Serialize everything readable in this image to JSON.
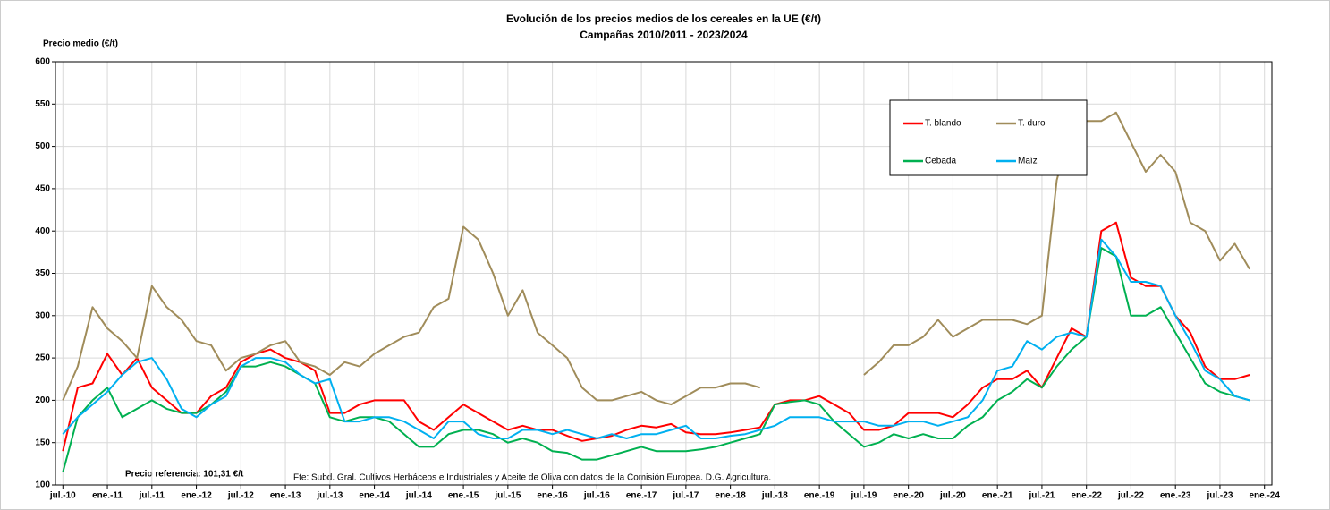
{
  "chart_data": {
    "type": "line",
    "title": "Evolución de los precios medios de los cereales en la UE (€/t)",
    "subtitle": "Campañas 2010/2011 - 2023/2024",
    "y_label": "Precio medio (€/t)",
    "annotations": [
      "Precio referencia: 101,31 €/t",
      "Fte: Subd. Gral. Cultivos Herbáceos e Industriales  y Aceite de Oliva con datos de la Comisión Europea. D.G. Agricultura."
    ],
    "x": [
      "2010-07",
      "2010-09",
      "2010-11",
      "2011-01",
      "2011-03",
      "2011-05",
      "2011-07",
      "2011-09",
      "2011-11",
      "2012-01",
      "2012-03",
      "2012-05",
      "2012-07",
      "2012-09",
      "2012-11",
      "2013-01",
      "2013-03",
      "2013-05",
      "2013-07",
      "2013-09",
      "2013-11",
      "2014-01",
      "2014-03",
      "2014-05",
      "2014-07",
      "2014-09",
      "2014-11",
      "2015-01",
      "2015-03",
      "2015-05",
      "2015-07",
      "2015-09",
      "2015-11",
      "2016-01",
      "2016-03",
      "2016-05",
      "2016-07",
      "2016-09",
      "2016-11",
      "2017-01",
      "2017-03",
      "2017-05",
      "2017-07",
      "2017-09",
      "2017-11",
      "2018-01",
      "2018-03",
      "2018-05",
      "2018-07",
      "2018-09",
      "2018-11",
      "2019-01",
      "2019-03",
      "2019-05",
      "2019-07",
      "2019-09",
      "2019-11",
      "2020-01",
      "2020-03",
      "2020-05",
      "2020-07",
      "2020-09",
      "2020-11",
      "2021-01",
      "2021-03",
      "2021-05",
      "2021-07",
      "2021-09",
      "2021-11",
      "2022-01",
      "2022-03",
      "2022-05",
      "2022-07",
      "2022-09",
      "2022-11",
      "2023-01",
      "2023-03",
      "2023-05",
      "2023-07",
      "2023-09",
      "2023-11"
    ],
    "series": [
      {
        "name": "T. blando",
        "color": "#ff0000",
        "values": [
          140,
          215,
          220,
          255,
          230,
          250,
          215,
          200,
          185,
          185,
          205,
          215,
          245,
          255,
          260,
          250,
          245,
          235,
          185,
          185,
          195,
          200,
          200,
          200,
          175,
          165,
          180,
          195,
          185,
          175,
          165,
          170,
          165,
          165,
          158,
          152,
          155,
          158,
          165,
          170,
          168,
          172,
          162,
          160,
          160,
          162,
          165,
          168,
          195,
          200,
          200,
          205,
          195,
          185,
          165,
          165,
          170,
          185,
          185,
          185,
          180,
          195,
          215,
          225,
          225,
          235,
          215,
          250,
          285,
          275,
          400,
          410,
          345,
          335,
          335,
          300,
          280,
          240,
          225,
          225,
          230
        ]
      },
      {
        "name": "T. duro",
        "color": "#a08c5a",
        "values": [
          200,
          240,
          310,
          285,
          270,
          250,
          335,
          310,
          295,
          270,
          265,
          235,
          250,
          255,
          265,
          270,
          245,
          240,
          230,
          245,
          240,
          255,
          265,
          275,
          280,
          310,
          320,
          405,
          390,
          350,
          300,
          330,
          280,
          265,
          250,
          215,
          200,
          200,
          205,
          210,
          200,
          195,
          205,
          215,
          215,
          220,
          220,
          215,
          null,
          null,
          null,
          null,
          null,
          null,
          230,
          245,
          265,
          265,
          275,
          295,
          275,
          285,
          295,
          295,
          295,
          290,
          300,
          460,
          525,
          530,
          530,
          540,
          505,
          470,
          490,
          470,
          410,
          400,
          365,
          385,
          355
        ]
      },
      {
        "name": "Cebada",
        "color": "#00b050",
        "values": [
          115,
          180,
          200,
          215,
          180,
          190,
          200,
          190,
          185,
          185,
          195,
          210,
          240,
          240,
          245,
          240,
          230,
          220,
          180,
          175,
          180,
          180,
          175,
          160,
          145,
          145,
          160,
          165,
          165,
          160,
          150,
          155,
          150,
          140,
          138,
          130,
          130,
          135,
          140,
          145,
          140,
          140,
          140,
          142,
          145,
          150,
          155,
          160,
          195,
          198,
          200,
          195,
          175,
          160,
          145,
          150,
          160,
          155,
          160,
          155,
          155,
          170,
          180,
          200,
          210,
          225,
          215,
          240,
          260,
          275,
          380,
          370,
          300,
          300,
          310,
          280,
          250,
          220,
          210,
          205,
          200
        ]
      },
      {
        "name": "Maíz",
        "color": "#00b0f0",
        "values": [
          160,
          180,
          195,
          210,
          230,
          245,
          250,
          225,
          190,
          180,
          195,
          205,
          240,
          250,
          250,
          245,
          230,
          220,
          225,
          175,
          175,
          180,
          180,
          175,
          165,
          155,
          175,
          175,
          160,
          155,
          155,
          165,
          165,
          160,
          165,
          160,
          155,
          160,
          155,
          160,
          160,
          165,
          170,
          155,
          155,
          158,
          160,
          165,
          170,
          180,
          180,
          180,
          175,
          175,
          175,
          170,
          170,
          175,
          175,
          170,
          175,
          180,
          200,
          235,
          240,
          270,
          260,
          275,
          280,
          275,
          390,
          370,
          340,
          340,
          335,
          300,
          270,
          235,
          225,
          205,
          200
        ]
      }
    ],
    "xlim": [
      "2010-06",
      "2024-02"
    ],
    "xticks": [
      {
        "value": "2010-07",
        "label": "jul.-10"
      },
      {
        "value": "2011-01",
        "label": "ene.-11"
      },
      {
        "value": "2011-07",
        "label": "jul.-11"
      },
      {
        "value": "2012-01",
        "label": "ene.-12"
      },
      {
        "value": "2012-07",
        "label": "jul.-12"
      },
      {
        "value": "2013-01",
        "label": "ene.-13"
      },
      {
        "value": "2013-07",
        "label": "jul.-13"
      },
      {
        "value": "2014-01",
        "label": "ene.-14"
      },
      {
        "value": "2014-07",
        "label": "jul.-14"
      },
      {
        "value": "2015-01",
        "label": "ene.-15"
      },
      {
        "value": "2015-07",
        "label": "jul.-15"
      },
      {
        "value": "2016-01",
        "label": "ene.-16"
      },
      {
        "value": "2016-07",
        "label": "jul.-16"
      },
      {
        "value": "2017-01",
        "label": "ene.-17"
      },
      {
        "value": "2017-07",
        "label": "jul.-17"
      },
      {
        "value": "2018-01",
        "label": "ene.-18"
      },
      {
        "value": "2018-07",
        "label": "jul.-18"
      },
      {
        "value": "2019-01",
        "label": "ene.-19"
      },
      {
        "value": "2019-07",
        "label": "jul.-19"
      },
      {
        "value": "2020-01",
        "label": "ene.-20"
      },
      {
        "value": "2020-07",
        "label": "jul.-20"
      },
      {
        "value": "2021-01",
        "label": "ene.-21"
      },
      {
        "value": "2021-07",
        "label": "jul.-21"
      },
      {
        "value": "2022-01",
        "label": "ene.-22"
      },
      {
        "value": "2022-07",
        "label": "jul.-22"
      },
      {
        "value": "2023-01",
        "label": "ene.-23"
      },
      {
        "value": "2023-07",
        "label": "jul.-23"
      },
      {
        "value": "2024-01",
        "label": "ene.-24"
      }
    ],
    "ylim": [
      100,
      600
    ],
    "yticks": [
      100,
      150,
      200,
      250,
      300,
      350,
      400,
      450,
      500,
      550,
      600
    ],
    "grid": true
  }
}
